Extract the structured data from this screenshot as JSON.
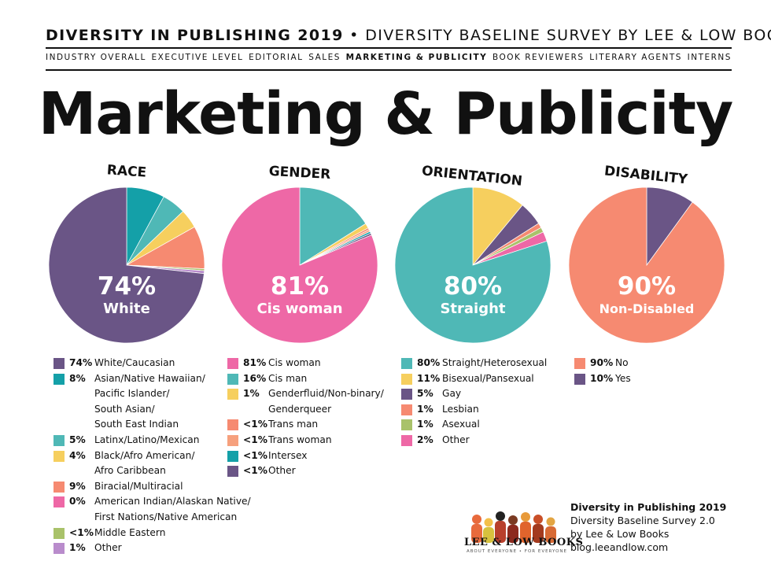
{
  "header": {
    "bold": "DIVERSITY IN PUBLISHING 2019",
    "separator": "•",
    "rest": "DIVERSITY BASELINE SURVEY BY LEE & LOW BOOKS"
  },
  "nav": [
    {
      "label": "INDUSTRY OVERALL",
      "active": false
    },
    {
      "label": "EXECUTIVE LEVEL",
      "active": false
    },
    {
      "label": "EDITORIAL",
      "active": false
    },
    {
      "label": "SALES",
      "active": false
    },
    {
      "label": "MARKETING & PUBLICITY",
      "active": true
    },
    {
      "label": "BOOK REVIEWERS",
      "active": false
    },
    {
      "label": "LITERARY AGENTS",
      "active": false
    },
    {
      "label": "INTERNS",
      "active": false
    }
  ],
  "page_title": "Marketing & Publicity",
  "chart_data": [
    {
      "type": "pie",
      "title": "RACE",
      "highlight_pct": "74%",
      "highlight_label": "White",
      "slices": [
        {
          "pct": "74%",
          "label": "White/Caucasian",
          "value": 74,
          "color": "#6a5586"
        },
        {
          "pct": "8%",
          "label": "Asian/Native Hawaiian/ Pacific Islander/ South Asian/ South East Indian",
          "label_lines": [
            "Asian/Native Hawaiian/",
            "Pacific Islander/",
            "South Asian/",
            "South East Indian"
          ],
          "value": 8,
          "color": "#14a0a8"
        },
        {
          "pct": "5%",
          "label": "Latinx/Latino/Mexican",
          "value": 5,
          "color": "#4fb8b6"
        },
        {
          "pct": "4%",
          "label": "Black/Afro American/ Afro Caribbean",
          "label_lines": [
            "Black/Afro American/",
            "Afro Caribbean"
          ],
          "value": 4,
          "color": "#f6cf5e"
        },
        {
          "pct": "9%",
          "label": "Biracial/Multiracial",
          "value": 9,
          "color": "#f68a71"
        },
        {
          "pct": "0%",
          "label": "American Indian/Alaskan Native/ First Nations/Native American",
          "label_lines": [
            "American Indian/Alaskan Native/",
            "First Nations/Native American"
          ],
          "value": 0,
          "color": "#ee68a6"
        },
        {
          "pct": "<1%",
          "label": "Middle Eastern",
          "value": 0.4,
          "color": "#a9c26a"
        },
        {
          "pct": "1%",
          "label": "Other",
          "value": 0.6,
          "color": "#b98ccc"
        }
      ]
    },
    {
      "type": "pie",
      "title": "GENDER",
      "highlight_pct": "81%",
      "highlight_label": "Cis woman",
      "slices": [
        {
          "pct": "81%",
          "label": "Cis woman",
          "value": 81,
          "color": "#ee68a6"
        },
        {
          "pct": "16%",
          "label": "Cis man",
          "value": 16,
          "color": "#4fb8b6"
        },
        {
          "pct": "1%",
          "label": "Genderfluid/Non-binary/ Genderqueer",
          "label_lines": [
            "Genderfluid/Non-binary/",
            "Genderqueer"
          ],
          "value": 1,
          "color": "#f6cf5e"
        },
        {
          "pct": "<1%",
          "label": "Trans man",
          "value": 0.4,
          "color": "#f68a71"
        },
        {
          "pct": "<1%",
          "label": "Trans woman",
          "value": 0.4,
          "color": "#f6a07d"
        },
        {
          "pct": "<1%",
          "label": "Intersex",
          "value": 0.4,
          "color": "#14a0a8"
        },
        {
          "pct": "<1%",
          "label": "Other",
          "value": 0.4,
          "color": "#6a5586"
        }
      ]
    },
    {
      "type": "pie",
      "title": "ORIENTATION",
      "highlight_pct": "80%",
      "highlight_label": "Straight",
      "slices": [
        {
          "pct": "80%",
          "label": "Straight/Heterosexual",
          "value": 80,
          "color": "#4fb8b6"
        },
        {
          "pct": "11%",
          "label": "Bisexual/Pansexual",
          "value": 11,
          "color": "#f6cf5e"
        },
        {
          "pct": "5%",
          "label": "Gay",
          "value": 5,
          "color": "#6a5586"
        },
        {
          "pct": "1%",
          "label": "Lesbian",
          "value": 1,
          "color": "#f68a71"
        },
        {
          "pct": "1%",
          "label": "Asexual",
          "value": 1,
          "color": "#a9c26a"
        },
        {
          "pct": "2%",
          "label": "Other",
          "value": 2,
          "color": "#ee68a6"
        }
      ]
    },
    {
      "type": "pie",
      "title": "DISABILITY",
      "highlight_pct": "90%",
      "highlight_label": "Non-Disabled",
      "slices": [
        {
          "pct": "90%",
          "label": "No",
          "value": 90,
          "color": "#f68a71"
        },
        {
          "pct": "10%",
          "label": "Yes",
          "value": 10,
          "color": "#6a5586"
        }
      ]
    }
  ],
  "brand": {
    "name": "LEE & LOW BOOKS",
    "tagline": "ABOUT EVERYONE • FOR EVERYONE"
  },
  "credit": {
    "line1": "Diversity in Publishing 2019",
    "line2": "Diversity Baseline Survey 2.0",
    "line3": "by Lee & Low Books",
    "line4": "blog.leeandlow.com"
  }
}
